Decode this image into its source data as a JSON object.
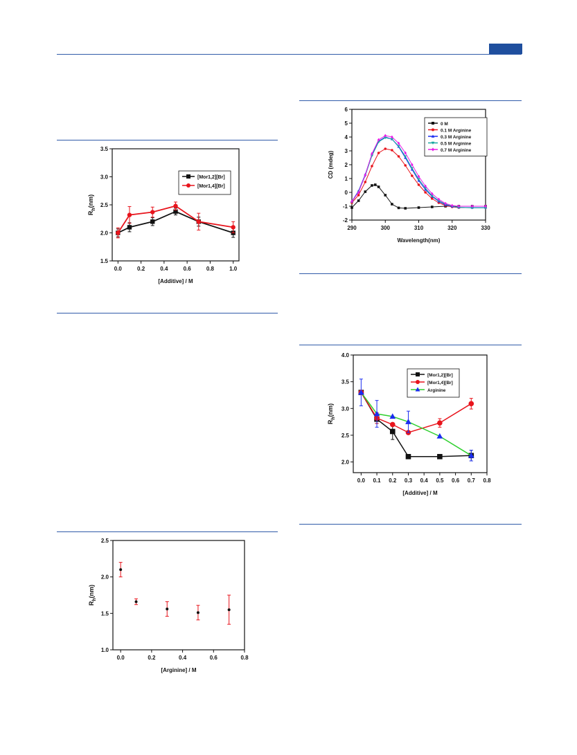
{
  "colors": {
    "rule": "#2f5aa8",
    "header_tab": "#1f4f9e",
    "black": "#111111",
    "red": "#e8141c",
    "blue": "#1a2cf0",
    "teal": "#1aa7a0",
    "magenta": "#e81ce8",
    "green": "#2fd02f"
  },
  "chart_data": [
    {
      "id": "chart1",
      "type": "line",
      "xlabel": "[Additive] / M",
      "ylabel_main": "R",
      "ylabel_sub": "h",
      "ylabel_tail": "(nm)",
      "xlim": [
        -0.05,
        1.05
      ],
      "ylim": [
        1.5,
        3.5
      ],
      "xticks": [
        0.0,
        0.2,
        0.4,
        0.6,
        0.8,
        1.0
      ],
      "xtick_labels": [
        "0.0",
        "0.2",
        "0.4",
        "0.6",
        "0.8",
        "1.0"
      ],
      "yticks": [
        1.5,
        2.0,
        2.5,
        3.0,
        3.5
      ],
      "ytick_labels": [
        "1.5",
        "2.0",
        "2.5",
        "3.0",
        "3.5"
      ],
      "legend_position": "right-center",
      "series": [
        {
          "name": "[Mor1,2][Br]",
          "color": "#111111",
          "marker": "square",
          "x": [
            0.0,
            0.1,
            0.3,
            0.5,
            0.7,
            1.0
          ],
          "y": [
            2.0,
            2.1,
            2.2,
            2.38,
            2.2,
            2.0
          ],
          "err": [
            0.07,
            0.08,
            0.07,
            0.06,
            0.08,
            0.08
          ]
        },
        {
          "name": "[Mor1,4][Br]",
          "color": "#e8141c",
          "marker": "circle",
          "x": [
            0.0,
            0.1,
            0.3,
            0.5,
            0.7,
            1.0
          ],
          "y": [
            2.0,
            2.32,
            2.37,
            2.48,
            2.2,
            2.1
          ],
          "err": [
            0.09,
            0.15,
            0.09,
            0.07,
            0.15,
            0.1
          ]
        }
      ]
    },
    {
      "id": "chart2",
      "type": "line",
      "xlabel": "Wavelength(nm)",
      "ylabel": "CD (mdeg)",
      "xlim": [
        290,
        330
      ],
      "ylim": [
        -2,
        6
      ],
      "xticks": [
        290,
        300,
        310,
        320,
        330
      ],
      "xtick_labels": [
        "290",
        "300",
        "310",
        "320",
        "330"
      ],
      "yticks": [
        -2,
        -1,
        0,
        1,
        2,
        3,
        4,
        5,
        6
      ],
      "ytick_labels": [
        "-2",
        "-1",
        "0",
        "1",
        "2",
        "3",
        "4",
        "5",
        "6"
      ],
      "legend_position": "top-right",
      "series": [
        {
          "name": "0    M",
          "color": "#111111",
          "marker": "square",
          "x": [
            290,
            292,
            294,
            296,
            297,
            298,
            300,
            302,
            304,
            306,
            310,
            314,
            318,
            322,
            326,
            330
          ],
          "y": [
            -1.1,
            -0.6,
            0.05,
            0.5,
            0.55,
            0.4,
            -0.2,
            -0.85,
            -1.12,
            -1.15,
            -1.1,
            -1.05,
            -1.0,
            -1.0,
            -1.0,
            -1.0
          ]
        },
        {
          "name": "0.1 M Arginine",
          "color": "#e8141c",
          "marker": "circle",
          "x": [
            290,
            292,
            294,
            296,
            298,
            300,
            302,
            304,
            306,
            308,
            310,
            312,
            314,
            316,
            318,
            320,
            322,
            326,
            330
          ],
          "y": [
            -0.75,
            -0.2,
            0.75,
            1.9,
            2.85,
            3.15,
            3.05,
            2.6,
            1.95,
            1.2,
            0.55,
            0.0,
            -0.45,
            -0.75,
            -0.95,
            -1.05,
            -1.1,
            -1.1,
            -1.1
          ]
        },
        {
          "name": "0.3 M Arginine",
          "color": "#1a2cf0",
          "marker": "triangle-up",
          "x": [
            290,
            292,
            294,
            296,
            298,
            300,
            302,
            304,
            306,
            308,
            310,
            312,
            314,
            316,
            318,
            320,
            322,
            326,
            330
          ],
          "y": [
            -0.65,
            0.1,
            1.3,
            2.75,
            3.7,
            4.0,
            3.85,
            3.3,
            2.5,
            1.65,
            0.85,
            0.2,
            -0.3,
            -0.65,
            -0.9,
            -1.02,
            -1.08,
            -1.1,
            -1.1
          ]
        },
        {
          "name": "0.5 M Arginine",
          "color": "#1aa7a0",
          "marker": "triangle-down",
          "x": [
            290,
            292,
            294,
            296,
            298,
            300,
            302,
            304,
            306,
            308,
            310,
            312,
            314,
            316,
            318,
            320,
            322,
            326,
            330
          ],
          "y": [
            -0.7,
            0.05,
            1.2,
            2.65,
            3.65,
            3.95,
            3.85,
            3.35,
            2.6,
            1.75,
            0.95,
            0.3,
            -0.25,
            -0.6,
            -0.85,
            -1.0,
            -1.08,
            -1.12,
            -1.12
          ]
        },
        {
          "name": "0.7 M Arginine",
          "color": "#e81ce8",
          "marker": "diamond",
          "x": [
            290,
            292,
            294,
            296,
            298,
            300,
            302,
            304,
            306,
            308,
            310,
            312,
            314,
            316,
            318,
            320,
            322,
            326,
            330
          ],
          "y": [
            -0.65,
            0.0,
            1.25,
            2.8,
            3.8,
            4.1,
            4.0,
            3.55,
            2.85,
            2.0,
            1.15,
            0.45,
            -0.1,
            -0.5,
            -0.8,
            -0.95,
            -1.0,
            -1.0,
            -1.0
          ]
        }
      ]
    },
    {
      "id": "chart3",
      "type": "line",
      "xlabel": "[Additive] / M",
      "ylabel_main": "R",
      "ylabel_sub": "h",
      "ylabel_tail": "(nm)",
      "xlim": [
        -0.05,
        0.8
      ],
      "ylim": [
        1.8,
        4.0
      ],
      "xticks": [
        0.0,
        0.1,
        0.2,
        0.3,
        0.4,
        0.5,
        0.6,
        0.7,
        0.8
      ],
      "xtick_labels": [
        "0.0",
        "0.1",
        "0.2",
        "0.3",
        "0.4",
        "0.5",
        "0.6",
        "0.7",
        "0.8"
      ],
      "yticks": [
        2.0,
        2.5,
        3.0,
        3.5,
        4.0
      ],
      "ytick_labels": [
        "2.0",
        "2.5",
        "3.0",
        "3.5",
        "4.0"
      ],
      "legend_position": "top-right",
      "series": [
        {
          "name": "[Mor1,2][Br]",
          "color": "#111111",
          "marker": "square",
          "x": [
            0.0,
            0.1,
            0.2,
            0.3,
            0.5,
            0.7
          ],
          "y": [
            3.3,
            2.8,
            2.57,
            2.1,
            2.1,
            2.12
          ],
          "err": [
            0.0,
            0.08,
            0.15,
            0.0,
            0.04,
            0.1
          ]
        },
        {
          "name": "[Mor1,4][Br]",
          "color": "#e8141c",
          "marker": "circle",
          "x": [
            0.0,
            0.1,
            0.2,
            0.3,
            0.5,
            0.7
          ],
          "y": [
            3.3,
            2.82,
            2.7,
            2.55,
            2.73,
            3.09
          ],
          "err": [
            0.0,
            0.1,
            0.0,
            0.0,
            0.08,
            0.1
          ]
        },
        {
          "name": "Arginine",
          "color": "#2fd02f",
          "marker": "triangle-up",
          "marker_color": "#1a2cf0",
          "x": [
            0.0,
            0.1,
            0.2,
            0.3,
            0.5,
            0.7
          ],
          "y": [
            3.3,
            2.9,
            2.85,
            2.75,
            2.48,
            2.12
          ],
          "err": [
            0.25,
            0.25,
            0.0,
            0.2,
            0.0,
            0.1
          ]
        }
      ]
    },
    {
      "id": "chart4",
      "type": "scatter",
      "xlabel": "[Arginine] / M",
      "ylabel_main": "R",
      "ylabel_sub": "h",
      "ylabel_tail": "(nm)",
      "xlim": [
        -0.05,
        0.8
      ],
      "ylim": [
        1.0,
        2.5
      ],
      "xticks": [
        0.0,
        0.2,
        0.4,
        0.6,
        0.8
      ],
      "xtick_labels": [
        "0.0",
        "0.2",
        "0.4",
        "0.6",
        "0.8"
      ],
      "yticks": [
        1.0,
        1.5,
        2.0,
        2.5
      ],
      "ytick_labels": [
        "1.0",
        "1.5",
        "2.0",
        "2.5"
      ],
      "series": [
        {
          "color": "#111111",
          "marker": "dot",
          "err_color": "#e8141c",
          "x": [
            0.0,
            0.1,
            0.3,
            0.5,
            0.7
          ],
          "y": [
            2.1,
            1.66,
            1.56,
            1.51,
            1.55
          ],
          "err": [
            0.1,
            0.04,
            0.1,
            0.1,
            0.2
          ]
        }
      ]
    }
  ]
}
